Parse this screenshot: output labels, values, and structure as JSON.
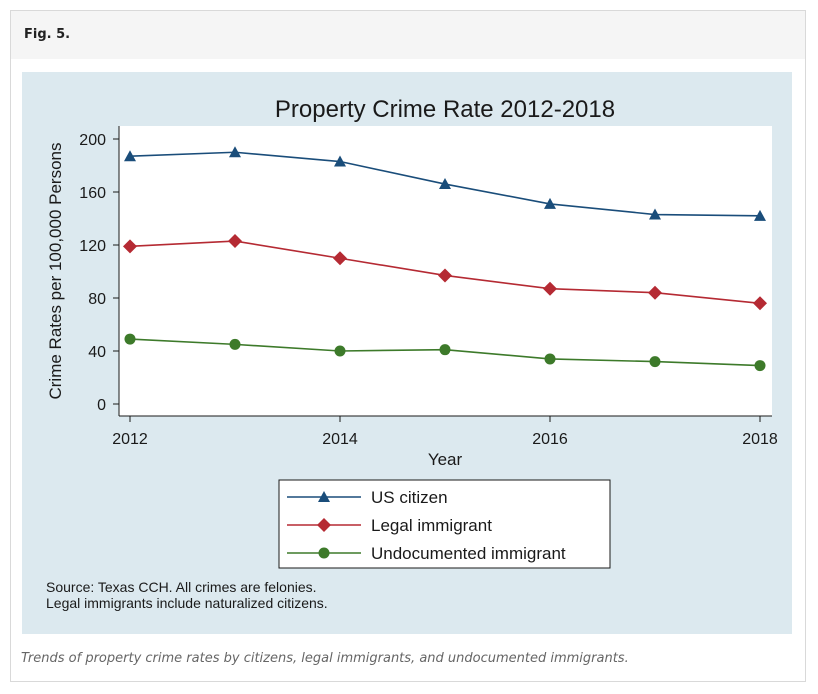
{
  "figure_label": "Fig. 5.",
  "caption": "Trends of property crime rates by citizens, legal immigrants, and undocumented immigrants.",
  "source_note": {
    "line1": "Source: Texas CCH. All crimes are felonies.",
    "line2": "Legal immigrants include naturalized citizens."
  },
  "colors": {
    "panel_bg": "#dce9ef",
    "plot_bg": "#ffffff",
    "title": "#1a3f6b",
    "us_citizen": "#1a4d7a",
    "legal_immigrant": "#b52a33",
    "undocumented_immigrant": "#3d7a2a"
  },
  "chart_data": {
    "type": "line",
    "title": "Property Crime Rate 2012-2018",
    "xlabel": "Year",
    "ylabel": "Crime Rates per 100,000 Persons",
    "x": [
      2012,
      2013,
      2014,
      2015,
      2016,
      2017,
      2018
    ],
    "xticks": [
      2012,
      2014,
      2016,
      2018
    ],
    "yticks": [
      0,
      40,
      80,
      120,
      160,
      200
    ],
    "ylim": [
      0,
      200
    ],
    "xlim": [
      2012,
      2018
    ],
    "grid": false,
    "legend_position": "bottom",
    "series": [
      {
        "name": "US citizen",
        "marker": "triangle",
        "values": [
          187,
          190,
          183,
          166,
          151,
          143,
          142
        ]
      },
      {
        "name": "Legal immigrant",
        "marker": "diamond",
        "values": [
          119,
          123,
          110,
          97,
          87,
          84,
          76
        ]
      },
      {
        "name": "Undocumented immigrant",
        "marker": "circle",
        "values": [
          49,
          45,
          40,
          41,
          34,
          32,
          29
        ]
      }
    ]
  }
}
